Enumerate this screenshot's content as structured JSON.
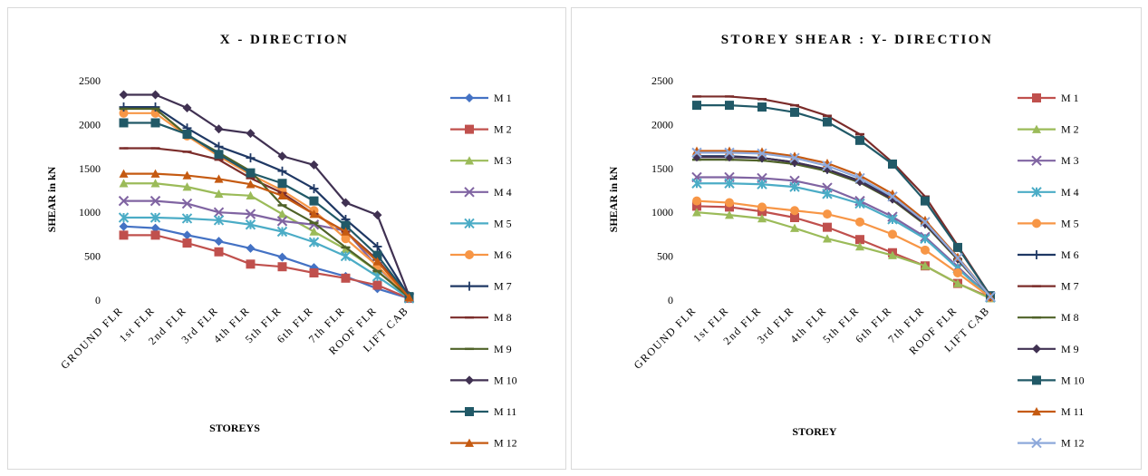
{
  "chart_data": [
    {
      "type": "line",
      "title": "X - DIRECTION",
      "xlabel": "STOREYS",
      "ylabel": "SHEAR in kN",
      "ylim": [
        0,
        2500
      ],
      "yticks": [
        0,
        500,
        1000,
        1500,
        2000,
        2500
      ],
      "grid": false,
      "legend": "right",
      "categories": [
        "GROUND FLR",
        "1st FLR",
        "2nd FLR",
        "3rd FLR",
        "4th FLR",
        "5th FLR",
        "6th FLR",
        "7th FLR",
        "ROOF FLR",
        "LIFT CAB"
      ],
      "series": [
        {
          "name": "M 1",
          "color": "#4472c4",
          "marker": "diamond",
          "values": [
            840,
            820,
            740,
            670,
            590,
            490,
            370,
            270,
            130,
            20
          ]
        },
        {
          "name": "M 2",
          "color": "#c0504d",
          "marker": "square",
          "values": [
            740,
            740,
            650,
            550,
            410,
            380,
            310,
            250,
            170,
            20
          ]
        },
        {
          "name": "M 3",
          "color": "#9bbb59",
          "marker": "triangle",
          "values": [
            1330,
            1330,
            1290,
            1210,
            1190,
            980,
            780,
            580,
            330,
            30
          ]
        },
        {
          "name": "M 4",
          "color": "#8064a2",
          "marker": "x",
          "values": [
            1130,
            1130,
            1100,
            1000,
            980,
            900,
            860,
            790,
            380,
            30
          ]
        },
        {
          "name": "M 5",
          "color": "#4bacc6",
          "marker": "star",
          "values": [
            940,
            940,
            930,
            910,
            860,
            780,
            660,
            500,
            270,
            20
          ]
        },
        {
          "name": "M 6",
          "color": "#f79646",
          "marker": "circle",
          "values": [
            2130,
            2130,
            1870,
            1640,
            1430,
            1250,
            1020,
            700,
            390,
            30
          ]
        },
        {
          "name": "M 7",
          "color": "#1f3864",
          "marker": "plus",
          "values": [
            2200,
            2200,
            1960,
            1750,
            1620,
            1470,
            1270,
            920,
            610,
            40
          ]
        },
        {
          "name": "M 8",
          "color": "#7b2c2a",
          "marker": "dash",
          "values": [
            1730,
            1730,
            1690,
            1600,
            1390,
            1220,
            980,
            780,
            460,
            30
          ]
        },
        {
          "name": "M 9",
          "color": "#4f6228",
          "marker": "dash",
          "values": [
            2180,
            2180,
            1880,
            1680,
            1470,
            1080,
            880,
            600,
            330,
            30
          ]
        },
        {
          "name": "M 10",
          "color": "#403152",
          "marker": "diamond",
          "values": [
            2340,
            2340,
            2190,
            1950,
            1900,
            1640,
            1540,
            1110,
            970,
            50
          ]
        },
        {
          "name": "M 11",
          "color": "#215967",
          "marker": "square",
          "values": [
            2020,
            2020,
            1890,
            1660,
            1450,
            1330,
            1130,
            850,
            510,
            40
          ]
        },
        {
          "name": "M 12",
          "color": "#c55a11",
          "marker": "triangle",
          "values": [
            1440,
            1440,
            1420,
            1380,
            1320,
            1190,
            980,
            780,
            440,
            30
          ]
        }
      ]
    },
    {
      "type": "line",
      "title": "STOREY SHEAR : Y- DIRECTION",
      "xlabel": "STOREY",
      "ylabel": "SHEAR in kN",
      "ylim": [
        0,
        2500
      ],
      "yticks": [
        0,
        500,
        1000,
        1500,
        2000,
        2500
      ],
      "grid": false,
      "legend": "right",
      "categories": [
        "GROUND FLR",
        "1st FLR",
        "2nd FLR",
        "3rd FLR",
        "4th FLR",
        "5th FLR",
        "6th FLR",
        "7th FLR",
        "ROOF FLR",
        "LIFT CAB"
      ],
      "series": [
        {
          "name": "M 1",
          "color": "#c0504d",
          "marker": "square",
          "values": [
            1070,
            1060,
            1010,
            940,
            830,
            690,
            540,
            390,
            190,
            30
          ]
        },
        {
          "name": "M 2",
          "color": "#9bbb59",
          "marker": "triangle",
          "values": [
            1000,
            970,
            930,
            820,
            700,
            610,
            510,
            390,
            190,
            20
          ]
        },
        {
          "name": "M 3",
          "color": "#8064a2",
          "marker": "x",
          "values": [
            1400,
            1400,
            1390,
            1360,
            1280,
            1130,
            950,
            720,
            380,
            30
          ]
        },
        {
          "name": "M 4",
          "color": "#4bacc6",
          "marker": "star",
          "values": [
            1330,
            1330,
            1320,
            1290,
            1210,
            1100,
            920,
            700,
            360,
            30
          ]
        },
        {
          "name": "M 5",
          "color": "#f79646",
          "marker": "circle",
          "values": [
            1130,
            1110,
            1060,
            1020,
            980,
            890,
            750,
            570,
            310,
            30
          ]
        },
        {
          "name": "M 6",
          "color": "#1f3864",
          "marker": "plus",
          "values": [
            1640,
            1640,
            1620,
            1570,
            1490,
            1360,
            1160,
            870,
            470,
            40
          ]
        },
        {
          "name": "M 7",
          "color": "#7b2c2a",
          "marker": "dash",
          "values": [
            2320,
            2320,
            2290,
            2220,
            2100,
            1890,
            1570,
            1180,
            620,
            50
          ]
        },
        {
          "name": "M 8",
          "color": "#4f6228",
          "marker": "dash",
          "values": [
            1600,
            1600,
            1590,
            1550,
            1470,
            1340,
            1140,
            860,
            460,
            40
          ]
        },
        {
          "name": "M 9",
          "color": "#403152",
          "marker": "diamond",
          "values": [
            1630,
            1630,
            1620,
            1570,
            1490,
            1350,
            1150,
            870,
            470,
            40
          ]
        },
        {
          "name": "M 10",
          "color": "#215967",
          "marker": "square",
          "values": [
            2220,
            2220,
            2200,
            2140,
            2030,
            1820,
            1550,
            1130,
            600,
            50
          ]
        },
        {
          "name": "M 11",
          "color": "#c55a11",
          "marker": "triangle",
          "values": [
            1700,
            1700,
            1690,
            1640,
            1560,
            1420,
            1210,
            910,
            490,
            40
          ]
        },
        {
          "name": "M 12",
          "color": "#8ea9db",
          "marker": "x",
          "values": [
            1680,
            1680,
            1670,
            1620,
            1530,
            1390,
            1180,
            890,
            480,
            40
          ]
        }
      ]
    }
  ]
}
